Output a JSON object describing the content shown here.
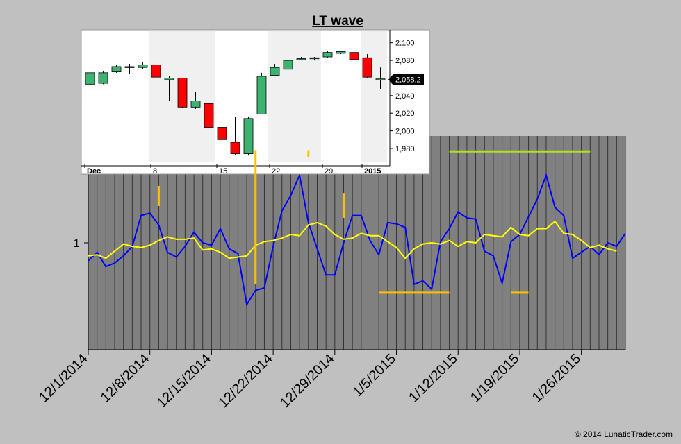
{
  "chart_data": [
    {
      "type": "line",
      "title": "LT wave",
      "ylabel": "",
      "y_tick_labels": [
        "1"
      ],
      "x_tick_labels": [
        "12/1/2014",
        "12/8/2014",
        "12/15/2014",
        "12/22/2014",
        "12/29/2014",
        "1/5/2015",
        "1/12/2015",
        "1/19/2015",
        "1/26/2015"
      ],
      "x_start": "2014-12-01",
      "x_end": "2015-01-31",
      "ylim": [
        0.1,
        1.9
      ],
      "grid": "vertical daily bars",
      "colors": {
        "background": "#c0c0c0",
        "plot": "#808080",
        "grid": "#333333",
        "series1": "#0000ff",
        "series2": "#ffff00",
        "marker_orange": "#ffc000",
        "marker_green": "#b0e020"
      },
      "series": [
        {
          "values": [
            0.85,
            0.92,
            0.8,
            0.83,
            0.89,
            0.97,
            1.23,
            1.25,
            1.15,
            0.92,
            0.88,
            0.97,
            1.09,
            1.0,
            0.98,
            1.12,
            0.95,
            0.91,
            0.48,
            0.6,
            0.62,
            0.97,
            1.27,
            1.4,
            1.57,
            1.17,
            0.95,
            0.73,
            0.73,
            1.0,
            1.23,
            1.23,
            1.02,
            0.9,
            1.17,
            1.16,
            1.13,
            0.65,
            0.68,
            0.61,
            1.01,
            1.12,
            1.26,
            1.21,
            1.2,
            0.93,
            0.89,
            0.66,
            1.01,
            1.07,
            1.22,
            1.37,
            1.57,
            1.3,
            1.23,
            0.87,
            0.92,
            0.97,
            0.9,
            1.0,
            0.97,
            1.08
          ]
        },
        {
          "values": [
            0.89,
            0.9,
            0.87,
            0.93,
            0.99,
            0.97,
            0.96,
            0.98,
            1.02,
            1.05,
            1.03,
            1.03,
            1.04,
            0.94,
            0.95,
            0.92,
            0.87,
            0.88,
            0.89,
            0.98,
            1.01,
            1.02,
            1.04,
            1.07,
            1.06,
            1.15,
            1.17,
            1.14,
            1.07,
            1.03,
            1.04,
            1.08,
            1.06,
            1.06,
            1.01,
            0.96,
            0.87,
            0.95,
            0.99,
            1.0,
            0.99,
            1.02,
            0.97,
            1.01,
            1.0,
            1.07,
            1.06,
            1.05,
            1.13,
            1.07,
            1.06,
            1.12,
            1.12,
            1.18,
            1.08,
            1.07,
            1.02,
            0.96,
            0.98,
            0.95,
            0.93
          ]
        }
      ],
      "markers": [
        {
          "color": "orange",
          "type": "vline",
          "x": "2014-12-09",
          "y1": 1.48,
          "y2": 1.31
        },
        {
          "color": "orange",
          "type": "vline",
          "x": "2014-12-20",
          "y1": 1.78,
          "y2": 0.65
        },
        {
          "color": "orange",
          "type": "vline",
          "x": "2014-12-26",
          "y1": 1.72,
          "y2": 1.78
        },
        {
          "color": "orange",
          "type": "vline",
          "x": "2014-12-30",
          "y1": 1.42,
          "y2": 1.21
        },
        {
          "color": "orange",
          "type": "hline",
          "y": 0.58,
          "x1": "2015-01-03",
          "x2": "2015-01-11"
        },
        {
          "color": "orange",
          "type": "hline",
          "y": 0.58,
          "x1": "2015-01-18",
          "x2": "2015-01-20"
        },
        {
          "color": "green",
          "type": "hline",
          "y": 1.77,
          "x1": "2015-01-11",
          "x2": "2015-01-27"
        }
      ]
    },
    {
      "type": "candlestick",
      "y_tick_labels": [
        "2,100",
        "2,080",
        "2,060",
        "2,040",
        "2,020",
        "2,000",
        "1,980"
      ],
      "ylim": [
        1965,
        2110
      ],
      "x_tick_labels": [
        "Dec",
        "8",
        "15",
        "22",
        "29",
        "2015"
      ],
      "last_value_label": "2,058.2",
      "colors": {
        "up": "#3cb371",
        "down": "#ff0000",
        "background": "#ffffff",
        "shade": "#f0f0f0"
      },
      "candles": [
        {
          "open": 2053,
          "high": 2068,
          "low": 2050,
          "close": 2066
        },
        {
          "open": 2054,
          "high": 2068,
          "low": 2053,
          "close": 2066
        },
        {
          "open": 2067,
          "high": 2075,
          "low": 2066,
          "close": 2073
        },
        {
          "open": 2072,
          "high": 2076,
          "low": 2065,
          "close": 2073
        },
        {
          "open": 2072,
          "high": 2078,
          "low": 2070,
          "close": 2075
        },
        {
          "open": 2075,
          "high": 2076,
          "low": 2060,
          "close": 2061
        },
        {
          "open": 2058,
          "high": 2062,
          "low": 2034,
          "close": 2060
        },
        {
          "open": 2060,
          "high": 2060,
          "low": 2026,
          "close": 2027
        },
        {
          "open": 2027,
          "high": 2044,
          "low": 2025,
          "close": 2034
        },
        {
          "open": 2031,
          "high": 2032,
          "low": 2003,
          "close": 2004
        },
        {
          "open": 2004,
          "high": 2008,
          "low": 1983,
          "close": 1990
        },
        {
          "open": 1987,
          "high": 2016,
          "low": 1973,
          "close": 1974
        },
        {
          "open": 1974,
          "high": 2016,
          "low": 1972,
          "close": 2014
        },
        {
          "open": 2019,
          "high": 2066,
          "low": 2019,
          "close": 2062
        },
        {
          "open": 2063,
          "high": 2076,
          "low": 2062,
          "close": 2072
        },
        {
          "open": 2070,
          "high": 2081,
          "low": 2070,
          "close": 2080
        },
        {
          "open": 2081,
          "high": 2084,
          "low": 2080,
          "close": 2082
        },
        {
          "open": 2082,
          "high": 2084,
          "low": 2080,
          "close": 2083
        },
        {
          "open": 2084,
          "high": 2091,
          "low": 2083,
          "close": 2089
        },
        {
          "open": 2088,
          "high": 2091,
          "low": 2087,
          "close": 2090
        },
        {
          "open": 2089,
          "high": 2090,
          "low": 2081,
          "close": 2081
        },
        {
          "open": 2083,
          "high": 2087,
          "low": 2060,
          "close": 2061
        },
        {
          "open": 2059,
          "high": 2072,
          "low": 2047,
          "close": 2059
        }
      ]
    }
  ],
  "copyright": "© 2014 LunaticTrader.com"
}
